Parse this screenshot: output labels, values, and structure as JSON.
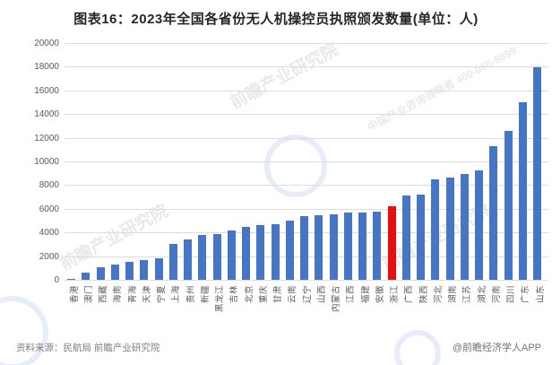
{
  "title": "图表16：2023年全国各省份无人机操控员执照颁发数量(单位：人)",
  "footer": {
    "source": "资料来源：民航局 前瞻产业研究院",
    "brand": "@前瞻经济学人APP"
  },
  "watermarks": {
    "text": "前瞻产业研究院",
    "subtext": "中国产业咨询领导者 400-068-9899"
  },
  "colors": {
    "bar_blue": "#4575C4",
    "bar_red": "#E90F0F",
    "grid": "#DCDCDC",
    "tick_text": "#595959"
  },
  "chart_data": {
    "type": "bar",
    "title": "图表16：2023年全国各省份无人机操控员执照颁发数量(单位：人)",
    "xlabel": "",
    "ylabel": "",
    "ylim": [
      0,
      20000
    ],
    "yticks": [
      0,
      2000,
      4000,
      6000,
      8000,
      10000,
      12000,
      14000,
      16000,
      18000,
      20000
    ],
    "grid": true,
    "legend": "none",
    "highlight_category": "浙江",
    "highlight_index": 22,
    "categories": [
      "香港",
      "澳门",
      "西藏",
      "海南",
      "青海",
      "天津",
      "宁夏",
      "上海",
      "贵州",
      "新疆",
      "黑龙江",
      "吉林",
      "北京",
      "重庆",
      "甘肃",
      "云南",
      "辽宁",
      "山西",
      "内蒙古",
      "江西",
      "福建",
      "安徽",
      "浙江",
      "广西",
      "陕西",
      "河北",
      "湖南",
      "江苏",
      "湖北",
      "河南",
      "四川",
      "广东",
      "山东"
    ],
    "values": [
      30,
      600,
      1050,
      1300,
      1500,
      1650,
      1800,
      3050,
      3400,
      3800,
      3850,
      4150,
      4500,
      4600,
      4700,
      5000,
      5350,
      5450,
      5550,
      5650,
      5700,
      5750,
      6250,
      7100,
      7200,
      8500,
      8650,
      8950,
      9250,
      11300,
      12550,
      15000,
      17950
    ]
  }
}
